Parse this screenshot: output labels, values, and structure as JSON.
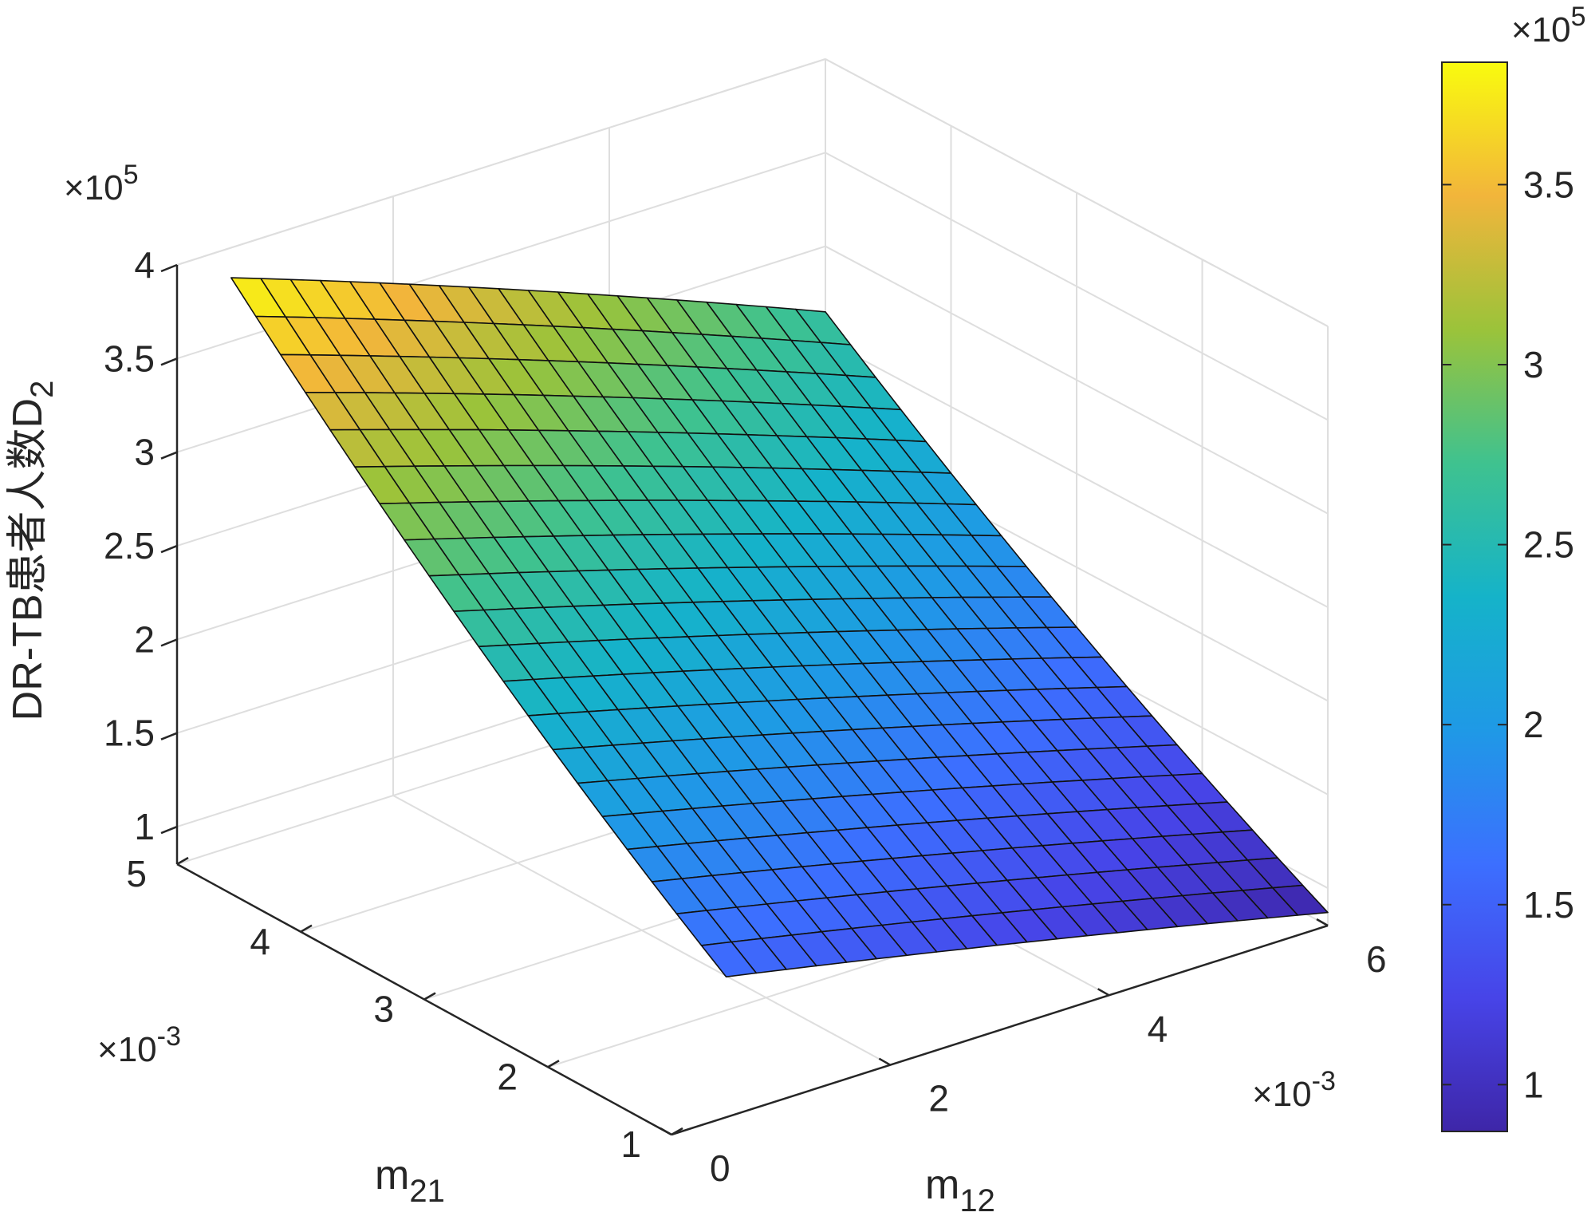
{
  "chart_data": {
    "type": "surface",
    "x_label": "m",
    "x_label_sub": "12",
    "y_label": "m",
    "y_label_sub": "21",
    "z_label": "DR-TB患者人数D",
    "z_label_sub": "2",
    "x_multiplier": "×10",
    "x_multiplier_exp": "-3",
    "y_multiplier": "×10",
    "y_multiplier_exp": "-3",
    "z_multiplier": "×10",
    "z_multiplier_exp": "5",
    "colorbar_multiplier": "×10",
    "colorbar_multiplier_exp": "5",
    "x_range": [
      0,
      0.006
    ],
    "y_range": [
      0.001,
      0.005
    ],
    "z_range": [
      80000,
      400000
    ],
    "color_range": [
      87000,
      384000
    ],
    "x_ticks": [
      {
        "value": 0,
        "label": "0"
      },
      {
        "value": 0.002,
        "label": "2"
      },
      {
        "value": 0.004,
        "label": "4"
      },
      {
        "value": 0.006,
        "label": "6"
      }
    ],
    "y_ticks": [
      {
        "value": 0.001,
        "label": "1"
      },
      {
        "value": 0.002,
        "label": "2"
      },
      {
        "value": 0.003,
        "label": "3"
      },
      {
        "value": 0.004,
        "label": "4"
      },
      {
        "value": 0.005,
        "label": "5"
      }
    ],
    "z_ticks": [
      {
        "value": 100000,
        "label": "1"
      },
      {
        "value": 150000,
        "label": "1.5"
      },
      {
        "value": 200000,
        "label": "2"
      },
      {
        "value": 250000,
        "label": "2.5"
      },
      {
        "value": 300000,
        "label": "3"
      },
      {
        "value": 350000,
        "label": "3.5"
      },
      {
        "value": 400000,
        "label": "4"
      }
    ],
    "colorbar_ticks": [
      {
        "value": 100000,
        "label": "1"
      },
      {
        "value": 150000,
        "label": "1.5"
      },
      {
        "value": 200000,
        "label": "2"
      },
      {
        "value": 250000,
        "label": "2.5"
      },
      {
        "value": 300000,
        "label": "3"
      },
      {
        "value": 350000,
        "label": "3.5"
      }
    ],
    "surface": {
      "x_min": 0.0005,
      "x_max": 0.006,
      "nx": 21,
      "y_min": 0.001,
      "y_max": 0.005,
      "ny": 21,
      "corners": {
        "x0.0005_y0.005": 384000,
        "x0.006_y0.005": 265000,
        "x0.0005_y0.001": 155000,
        "x0.006_y0.001": 87000
      },
      "y_curvature": 0.18,
      "x_curvature": 0.08
    },
    "colormap": "parula",
    "grid": true,
    "box": true
  }
}
